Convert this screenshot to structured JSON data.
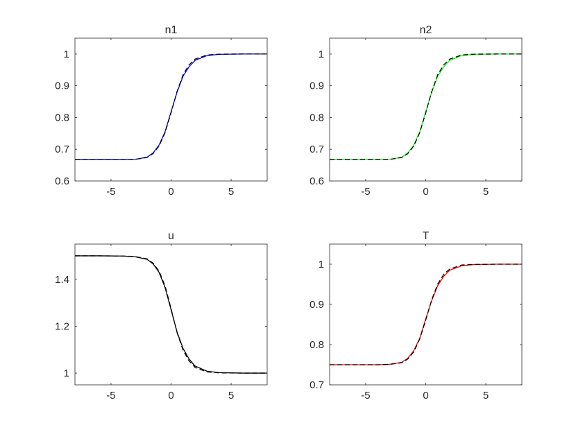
{
  "chart_data": [
    {
      "type": "line",
      "title": "n1",
      "xlabel": "",
      "ylabel": "",
      "xlim": [
        -8,
        8
      ],
      "ylim": [
        0.6,
        1.05
      ],
      "xticks": [
        -5,
        0,
        5
      ],
      "xtick_labels": [
        "-5",
        "0",
        "5"
      ],
      "yticks": [
        0.6,
        0.7,
        0.8,
        0.9,
        1
      ],
      "ytick_labels": [
        "0.6",
        "0.7",
        "0.8",
        "0.9",
        "1"
      ],
      "grid": false,
      "x": [
        -8,
        -6,
        -4,
        -3,
        -2,
        -1.5,
        -1,
        -0.5,
        0,
        0.5,
        1,
        1.5,
        2,
        3,
        4,
        6,
        8
      ],
      "series": [
        {
          "color": "#0000ff",
          "style": "solid",
          "values": [
            0.667,
            0.667,
            0.667,
            0.668,
            0.675,
            0.688,
            0.713,
            0.755,
            0.818,
            0.88,
            0.93,
            0.96,
            0.98,
            0.995,
            0.999,
            1.0,
            1.0
          ]
        },
        {
          "color": "#000000",
          "style": "dashed",
          "values": [
            0.667,
            0.667,
            0.667,
            0.668,
            0.674,
            0.686,
            0.71,
            0.752,
            0.815,
            0.882,
            0.935,
            0.966,
            0.984,
            0.997,
            0.9995,
            1.0,
            1.0
          ]
        }
      ]
    },
    {
      "type": "line",
      "title": "n2",
      "xlabel": "",
      "ylabel": "",
      "xlim": [
        -8,
        8
      ],
      "ylim": [
        0.6,
        1.05
      ],
      "xticks": [
        -5,
        0,
        5
      ],
      "xtick_labels": [
        "-5",
        "0",
        "5"
      ],
      "yticks": [
        0.6,
        0.7,
        0.8,
        0.9,
        1
      ],
      "ytick_labels": [
        "0.6",
        "0.7",
        "0.8",
        "0.9",
        "1"
      ],
      "grid": false,
      "x": [
        -8,
        -6,
        -4,
        -3,
        -2,
        -1.5,
        -1,
        -0.5,
        0,
        0.5,
        1,
        1.5,
        2,
        3,
        4,
        6,
        8
      ],
      "series": [
        {
          "color": "#00ff00",
          "style": "solid",
          "values": [
            0.667,
            0.667,
            0.667,
            0.668,
            0.675,
            0.688,
            0.713,
            0.755,
            0.818,
            0.88,
            0.93,
            0.96,
            0.98,
            0.995,
            0.999,
            1.0,
            1.0
          ]
        },
        {
          "color": "#000000",
          "style": "dashed",
          "values": [
            0.667,
            0.667,
            0.667,
            0.668,
            0.674,
            0.686,
            0.71,
            0.752,
            0.815,
            0.882,
            0.935,
            0.966,
            0.984,
            0.997,
            0.9995,
            1.0,
            1.0
          ]
        }
      ]
    },
    {
      "type": "line",
      "title": "u",
      "xlabel": "",
      "ylabel": "",
      "xlim": [
        -8,
        8
      ],
      "ylim": [
        0.95,
        1.55
      ],
      "xticks": [
        -5,
        0,
        5
      ],
      "xtick_labels": [
        "-5",
        "0",
        "5"
      ],
      "yticks": [
        1,
        1.2,
        1.4
      ],
      "ytick_labels": [
        "1",
        "1.2",
        "1.4"
      ],
      "grid": false,
      "x": [
        -8,
        -6,
        -4,
        -3,
        -2,
        -1.5,
        -1,
        -0.5,
        0,
        0.5,
        1,
        1.5,
        2,
        3,
        4,
        6,
        8
      ],
      "series": [
        {
          "color": "#000000",
          "style": "solid",
          "values": [
            1.5,
            1.5,
            1.499,
            1.496,
            1.485,
            1.466,
            1.43,
            1.365,
            1.27,
            1.175,
            1.105,
            1.06,
            1.03,
            1.008,
            1.002,
            1.0,
            1.0
          ]
        },
        {
          "color": "#000000",
          "style": "dashed",
          "values": [
            1.5,
            1.5,
            1.499,
            1.497,
            1.487,
            1.469,
            1.435,
            1.372,
            1.275,
            1.172,
            1.098,
            1.052,
            1.024,
            1.005,
            1.001,
            1.0,
            1.0
          ]
        }
      ]
    },
    {
      "type": "line",
      "title": "T",
      "xlabel": "",
      "ylabel": "",
      "xlim": [
        -8,
        8
      ],
      "ylim": [
        0.7,
        1.05
      ],
      "xticks": [
        -5,
        0,
        5
      ],
      "xtick_labels": [
        "-5",
        "0",
        "5"
      ],
      "yticks": [
        0.7,
        0.8,
        0.9,
        1
      ],
      "ytick_labels": [
        "0.7",
        "0.8",
        "0.9",
        "1"
      ],
      "grid": false,
      "x": [
        -8,
        -6,
        -4,
        -3,
        -2,
        -1.5,
        -1,
        -0.5,
        0,
        0.5,
        1,
        1.5,
        2,
        3,
        4,
        6,
        8
      ],
      "series": [
        {
          "color": "#ff0000",
          "style": "solid",
          "values": [
            0.75,
            0.75,
            0.75,
            0.751,
            0.756,
            0.766,
            0.785,
            0.816,
            0.864,
            0.91,
            0.947,
            0.97,
            0.985,
            0.996,
            0.999,
            1.0,
            1.0
          ]
        },
        {
          "color": "#000000",
          "style": "dashed",
          "values": [
            0.75,
            0.75,
            0.75,
            0.751,
            0.755,
            0.764,
            0.782,
            0.814,
            0.861,
            0.912,
            0.951,
            0.975,
            0.988,
            0.998,
            0.9995,
            1.0,
            1.0
          ]
        }
      ]
    }
  ]
}
